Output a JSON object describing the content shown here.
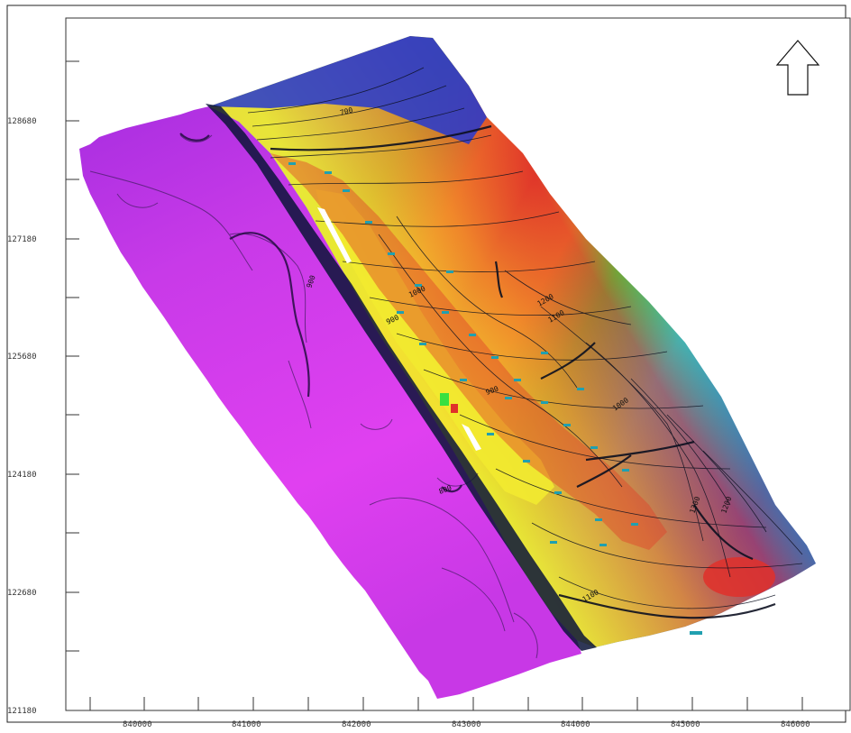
{
  "map": {
    "y_axis_labels": [
      "128680",
      "127180",
      "125680",
      "124180",
      "122680",
      "121180"
    ],
    "x_axis_labels": [
      "840000",
      "841000",
      "842000",
      "843000",
      "844000",
      "845000",
      "846000"
    ],
    "contour_labels": [
      "1200",
      "1100",
      "1000",
      "900",
      "800",
      "700",
      "1300",
      "1200",
      "1100",
      "900",
      "1000",
      "900"
    ],
    "north_arrow": "north-arrow-icon",
    "colors": {
      "magenta": "#e040f0",
      "purple": "#b430d8",
      "blue": "#2a4fd8",
      "cyan": "#22c8e8",
      "green": "#38e040",
      "yellow": "#f2e830",
      "orange": "#f0902a",
      "red": "#e0302a",
      "fault": "#0a1438"
    }
  }
}
